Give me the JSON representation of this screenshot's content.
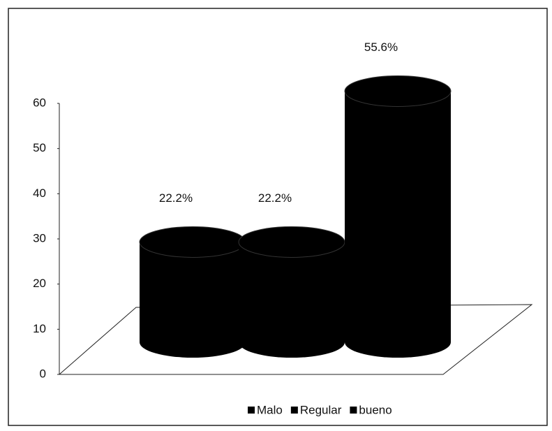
{
  "chart_data": {
    "type": "bar",
    "series": [
      {
        "name": "Malo",
        "color": "#000000",
        "values": [
          22.2
        ],
        "value_labels": [
          "22.2%"
        ]
      },
      {
        "name": "Regular",
        "color": "#000000",
        "values": [
          22.2
        ],
        "value_labels": [
          "22.2%"
        ]
      },
      {
        "name": "bueno",
        "color": "#000000",
        "values": [
          55.6
        ],
        "value_labels": [
          "55.6%"
        ]
      }
    ],
    "ylim": [
      0,
      60
    ],
    "yticks": [
      0,
      10,
      20,
      30,
      40,
      50,
      60
    ],
    "legend": "bottom"
  }
}
